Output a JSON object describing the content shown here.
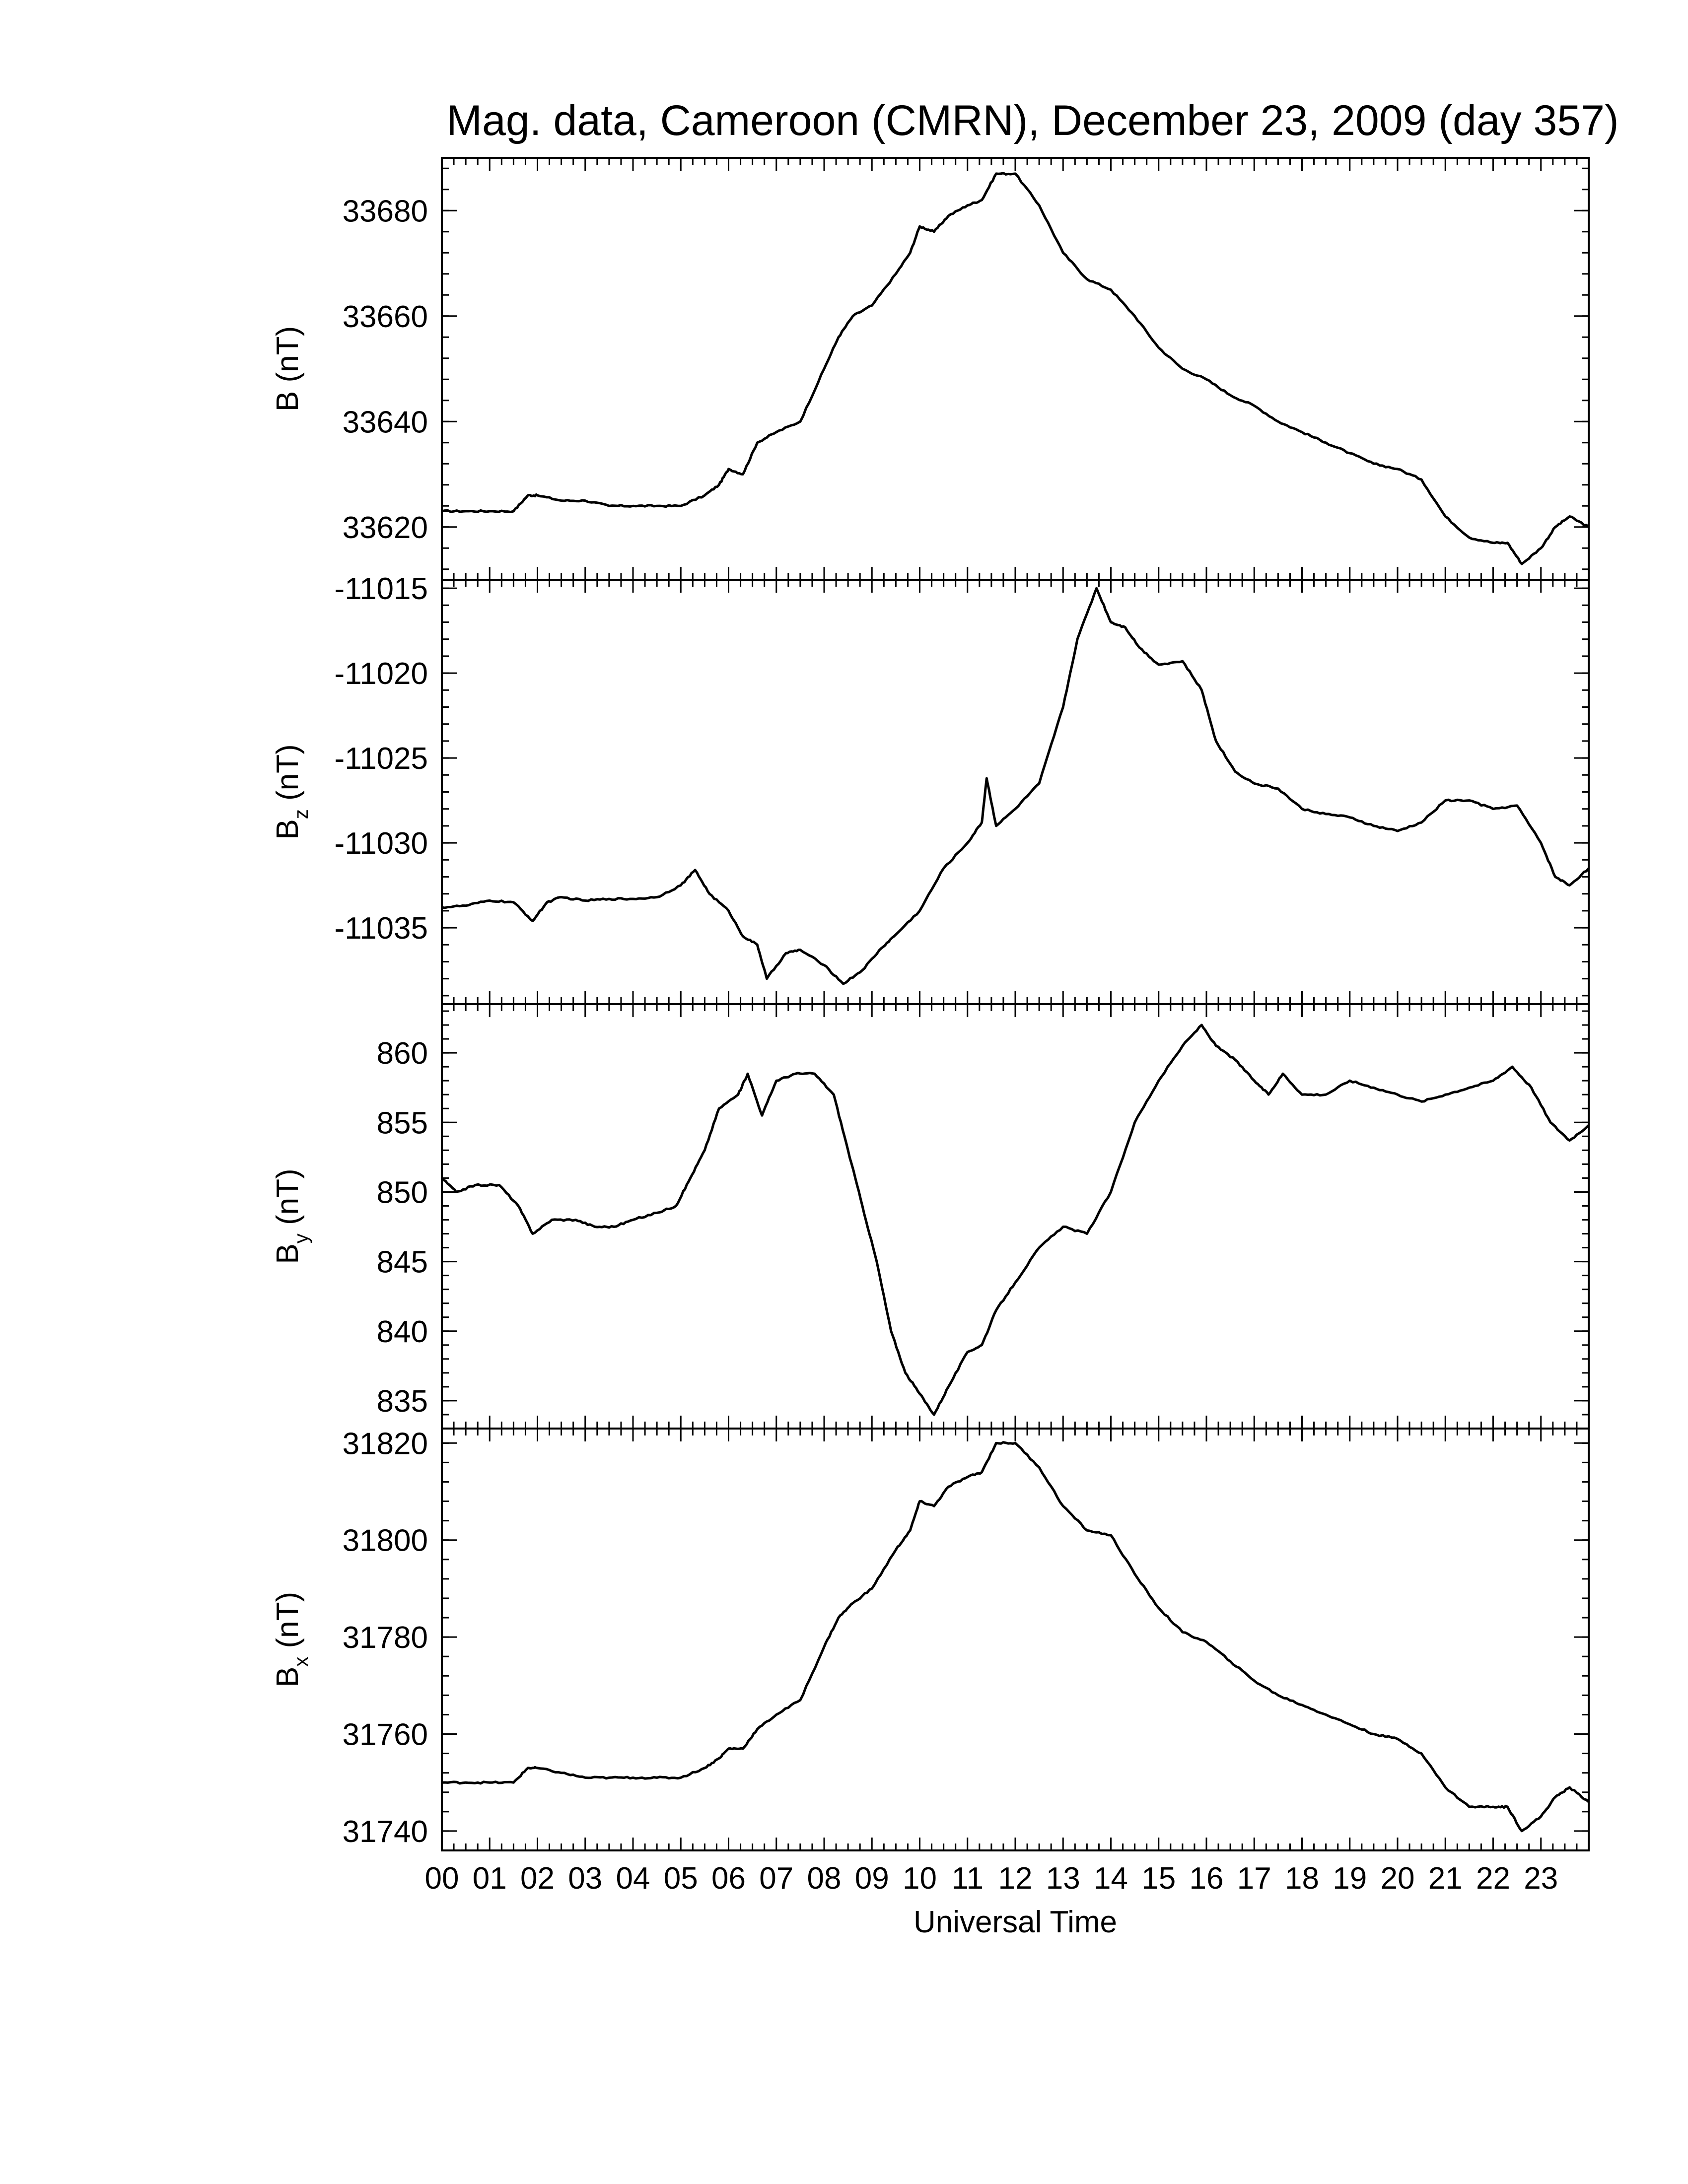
{
  "chart_data": {
    "type": "line",
    "title": "Mag. data, Cameroon (CMRN), December 23, 2009 (day 357)",
    "xlabel": "Universal Time",
    "xlim": [
      0,
      24
    ],
    "x_tick_labels": [
      "00",
      "01",
      "02",
      "03",
      "04",
      "05",
      "06",
      "07",
      "08",
      "09",
      "10",
      "11",
      "12",
      "13",
      "14",
      "15",
      "16",
      "17",
      "18",
      "19",
      "20",
      "21",
      "22",
      "23"
    ],
    "grid": false,
    "panels": [
      {
        "key": "B",
        "ylabel_main": "B",
        "ylabel_sub": "",
        "ylabel_unit": " (nT)",
        "ylim": [
          33610,
          33690
        ],
        "yticks": [
          33620,
          33640,
          33660,
          33680
        ],
        "ytick_labels": [
          "33620",
          "33640",
          "33660",
          "33680"
        ],
        "points": [
          [
            0.0,
            33623
          ],
          [
            0.5,
            33623
          ],
          [
            1.0,
            33623
          ],
          [
            1.5,
            33623
          ],
          [
            1.8,
            33626
          ],
          [
            2.0,
            33626
          ],
          [
            2.5,
            33625
          ],
          [
            3.0,
            33625
          ],
          [
            3.5,
            33624
          ],
          [
            4.0,
            33624
          ],
          [
            4.5,
            33624
          ],
          [
            5.0,
            33624
          ],
          [
            5.5,
            33626
          ],
          [
            5.8,
            33628
          ],
          [
            6.0,
            33631
          ],
          [
            6.3,
            33630
          ],
          [
            6.6,
            33636
          ],
          [
            7.0,
            33638
          ],
          [
            7.5,
            33640
          ],
          [
            8.0,
            33650
          ],
          [
            8.3,
            33656
          ],
          [
            8.6,
            33660
          ],
          [
            9.0,
            33662
          ],
          [
            9.5,
            33668
          ],
          [
            9.8,
            33672
          ],
          [
            10.0,
            33677
          ],
          [
            10.3,
            33676
          ],
          [
            10.6,
            33679
          ],
          [
            11.0,
            33681
          ],
          [
            11.3,
            33682
          ],
          [
            11.6,
            33687
          ],
          [
            12.0,
            33687
          ],
          [
            12.5,
            33681
          ],
          [
            13.0,
            33672
          ],
          [
            13.5,
            33667
          ],
          [
            14.0,
            33665
          ],
          [
            14.5,
            33660
          ],
          [
            15.0,
            33654
          ],
          [
            15.5,
            33650
          ],
          [
            16.0,
            33648
          ],
          [
            16.5,
            33645
          ],
          [
            17.0,
            33643
          ],
          [
            17.5,
            33640
          ],
          [
            18.0,
            33638
          ],
          [
            18.5,
            33636
          ],
          [
            19.0,
            33634
          ],
          [
            19.5,
            33632
          ],
          [
            20.0,
            33631
          ],
          [
            20.5,
            33629
          ],
          [
            21.0,
            33622
          ],
          [
            21.5,
            33618
          ],
          [
            22.0,
            33617
          ],
          [
            22.3,
            33617
          ],
          [
            22.6,
            33613
          ],
          [
            23.0,
            33616
          ],
          [
            23.3,
            33620
          ],
          [
            23.6,
            33622
          ],
          [
            24.0,
            33620
          ]
        ]
      },
      {
        "key": "Bz",
        "ylabel_main": "B",
        "ylabel_sub": "z",
        "ylabel_unit": " (nT)",
        "ylim": [
          -11039.5,
          -11014.5
        ],
        "yticks": [
          -11035,
          -11030,
          -11025,
          -11020,
          -11015
        ],
        "ytick_labels": [
          "-11035",
          "-11030",
          "-11025",
          "-11020",
          "-11015"
        ],
        "points": [
          [
            0.0,
            -11033.8
          ],
          [
            0.5,
            -11033.7
          ],
          [
            1.0,
            -11033.4
          ],
          [
            1.5,
            -11033.5
          ],
          [
            1.9,
            -11034.6
          ],
          [
            2.2,
            -11033.5
          ],
          [
            2.5,
            -11033.2
          ],
          [
            3.0,
            -11033.4
          ],
          [
            3.5,
            -11033.3
          ],
          [
            4.0,
            -11033.3
          ],
          [
            4.5,
            -11033.2
          ],
          [
            5.0,
            -11032.5
          ],
          [
            5.3,
            -11031.6
          ],
          [
            5.6,
            -11033.0
          ],
          [
            6.0,
            -11034.0
          ],
          [
            6.3,
            -11035.5
          ],
          [
            6.6,
            -11036.0
          ],
          [
            6.8,
            -11038.0
          ],
          [
            7.2,
            -11036.5
          ],
          [
            7.5,
            -11036.3
          ],
          [
            8.0,
            -11037.2
          ],
          [
            8.4,
            -11038.3
          ],
          [
            8.8,
            -11037.5
          ],
          [
            9.2,
            -11036.2
          ],
          [
            9.5,
            -11035.4
          ],
          [
            10.0,
            -11034.0
          ],
          [
            10.5,
            -11031.5
          ],
          [
            11.0,
            -11030.0
          ],
          [
            11.3,
            -11028.8
          ],
          [
            11.4,
            -11026.2
          ],
          [
            11.6,
            -11029.0
          ],
          [
            12.0,
            -11028.0
          ],
          [
            12.5,
            -11026.5
          ],
          [
            13.0,
            -11022.0
          ],
          [
            13.3,
            -11018.0
          ],
          [
            13.7,
            -11015.0
          ],
          [
            14.0,
            -11017.0
          ],
          [
            14.3,
            -11017.3
          ],
          [
            14.6,
            -11018.5
          ],
          [
            15.0,
            -11019.5
          ],
          [
            15.5,
            -11019.3
          ],
          [
            15.9,
            -11021.0
          ],
          [
            16.2,
            -11024.0
          ],
          [
            16.6,
            -11025.8
          ],
          [
            17.0,
            -11026.5
          ],
          [
            17.5,
            -11026.8
          ],
          [
            18.0,
            -11028.0
          ],
          [
            18.5,
            -11028.3
          ],
          [
            19.0,
            -11028.5
          ],
          [
            19.5,
            -11029.0
          ],
          [
            20.0,
            -11029.3
          ],
          [
            20.5,
            -11028.8
          ],
          [
            21.0,
            -11027.5
          ],
          [
            21.5,
            -11027.5
          ],
          [
            22.0,
            -11028.0
          ],
          [
            22.5,
            -11027.8
          ],
          [
            23.0,
            -11030.0
          ],
          [
            23.3,
            -11032.0
          ],
          [
            23.6,
            -11032.5
          ],
          [
            24.0,
            -11031.5
          ]
        ]
      },
      {
        "key": "By",
        "ylabel_main": "B",
        "ylabel_sub": "y",
        "ylabel_unit": " (nT)",
        "ylim": [
          833,
          863.5
        ],
        "yticks": [
          835,
          840,
          845,
          850,
          855,
          860
        ],
        "ytick_labels": [
          "835",
          "840",
          "845",
          "850",
          "855",
          "860"
        ],
        "points": [
          [
            0.0,
            851.0
          ],
          [
            0.3,
            850.0
          ],
          [
            0.7,
            850.5
          ],
          [
            1.2,
            850.5
          ],
          [
            1.6,
            849.0
          ],
          [
            1.9,
            847.0
          ],
          [
            2.3,
            848.0
          ],
          [
            2.8,
            848.0
          ],
          [
            3.2,
            847.5
          ],
          [
            3.6,
            847.5
          ],
          [
            4.0,
            848.0
          ],
          [
            4.5,
            848.5
          ],
          [
            4.9,
            849.0
          ],
          [
            5.2,
            851.0
          ],
          [
            5.5,
            853.0
          ],
          [
            5.8,
            856.0
          ],
          [
            6.2,
            857.0
          ],
          [
            6.4,
            858.5
          ],
          [
            6.7,
            855.5
          ],
          [
            7.0,
            858.0
          ],
          [
            7.4,
            858.5
          ],
          [
            7.8,
            858.5
          ],
          [
            8.2,
            857.0
          ],
          [
            8.5,
            853.0
          ],
          [
            8.8,
            849.0
          ],
          [
            9.1,
            845.0
          ],
          [
            9.4,
            840.0
          ],
          [
            9.7,
            837.0
          ],
          [
            10.0,
            835.5
          ],
          [
            10.3,
            834.0
          ],
          [
            10.6,
            836.0
          ],
          [
            11.0,
            838.5
          ],
          [
            11.3,
            839.0
          ],
          [
            11.6,
            841.5
          ],
          [
            12.0,
            843.5
          ],
          [
            12.5,
            846.0
          ],
          [
            13.0,
            847.5
          ],
          [
            13.5,
            847.0
          ],
          [
            14.0,
            850.0
          ],
          [
            14.5,
            855.0
          ],
          [
            15.0,
            858.0
          ],
          [
            15.5,
            860.5
          ],
          [
            15.9,
            862.0
          ],
          [
            16.2,
            860.5
          ],
          [
            16.6,
            859.5
          ],
          [
            17.0,
            858.0
          ],
          [
            17.3,
            857.0
          ],
          [
            17.6,
            858.5
          ],
          [
            18.0,
            857.0
          ],
          [
            18.5,
            857.0
          ],
          [
            19.0,
            858.0
          ],
          [
            19.5,
            857.5
          ],
          [
            20.0,
            857.0
          ],
          [
            20.5,
            856.5
          ],
          [
            21.0,
            857.0
          ],
          [
            21.5,
            857.5
          ],
          [
            22.0,
            858.0
          ],
          [
            22.4,
            859.0
          ],
          [
            22.8,
            857.5
          ],
          [
            23.2,
            855.0
          ],
          [
            23.6,
            853.7
          ],
          [
            24.0,
            854.8
          ]
        ]
      },
      {
        "key": "Bx",
        "ylabel_main": "B",
        "ylabel_sub": "x",
        "ylabel_unit": " (nT)",
        "ylim": [
          31736,
          31823
        ],
        "yticks": [
          31740,
          31760,
          31780,
          31800,
          31820
        ],
        "ytick_labels": [
          "31740",
          "31760",
          "31780",
          "31800",
          "31820"
        ],
        "points": [
          [
            0.0,
            31750
          ],
          [
            0.5,
            31750
          ],
          [
            1.0,
            31750
          ],
          [
            1.5,
            31750
          ],
          [
            1.8,
            31753
          ],
          [
            2.0,
            31753
          ],
          [
            2.5,
            31752
          ],
          [
            3.0,
            31751
          ],
          [
            3.5,
            31751
          ],
          [
            4.0,
            31751
          ],
          [
            4.5,
            31751
          ],
          [
            5.0,
            31751
          ],
          [
            5.5,
            31753
          ],
          [
            5.8,
            31755
          ],
          [
            6.0,
            31757
          ],
          [
            6.3,
            31757
          ],
          [
            6.6,
            31761
          ],
          [
            7.0,
            31764
          ],
          [
            7.5,
            31767
          ],
          [
            8.0,
            31778
          ],
          [
            8.3,
            31784
          ],
          [
            8.6,
            31787
          ],
          [
            9.0,
            31790
          ],
          [
            9.5,
            31798
          ],
          [
            9.8,
            31802
          ],
          [
            10.0,
            31808
          ],
          [
            10.3,
            31807
          ],
          [
            10.6,
            31811
          ],
          [
            11.0,
            31813
          ],
          [
            11.3,
            31814
          ],
          [
            11.6,
            31820
          ],
          [
            12.0,
            31820
          ],
          [
            12.5,
            31815
          ],
          [
            13.0,
            31807
          ],
          [
            13.5,
            31802
          ],
          [
            14.0,
            31801
          ],
          [
            14.5,
            31793
          ],
          [
            15.0,
            31786
          ],
          [
            15.5,
            31781
          ],
          [
            16.0,
            31779
          ],
          [
            16.5,
            31775
          ],
          [
            17.0,
            31771
          ],
          [
            17.5,
            31768
          ],
          [
            18.0,
            31766
          ],
          [
            18.5,
            31764
          ],
          [
            19.0,
            31762
          ],
          [
            19.5,
            31760
          ],
          [
            20.0,
            31759
          ],
          [
            20.5,
            31756
          ],
          [
            21.0,
            31749
          ],
          [
            21.5,
            31745
          ],
          [
            22.0,
            31745
          ],
          [
            22.3,
            31745
          ],
          [
            22.6,
            31740
          ],
          [
            23.0,
            31743
          ],
          [
            23.3,
            31747
          ],
          [
            23.6,
            31749
          ],
          [
            24.0,
            31746
          ]
        ]
      }
    ]
  }
}
